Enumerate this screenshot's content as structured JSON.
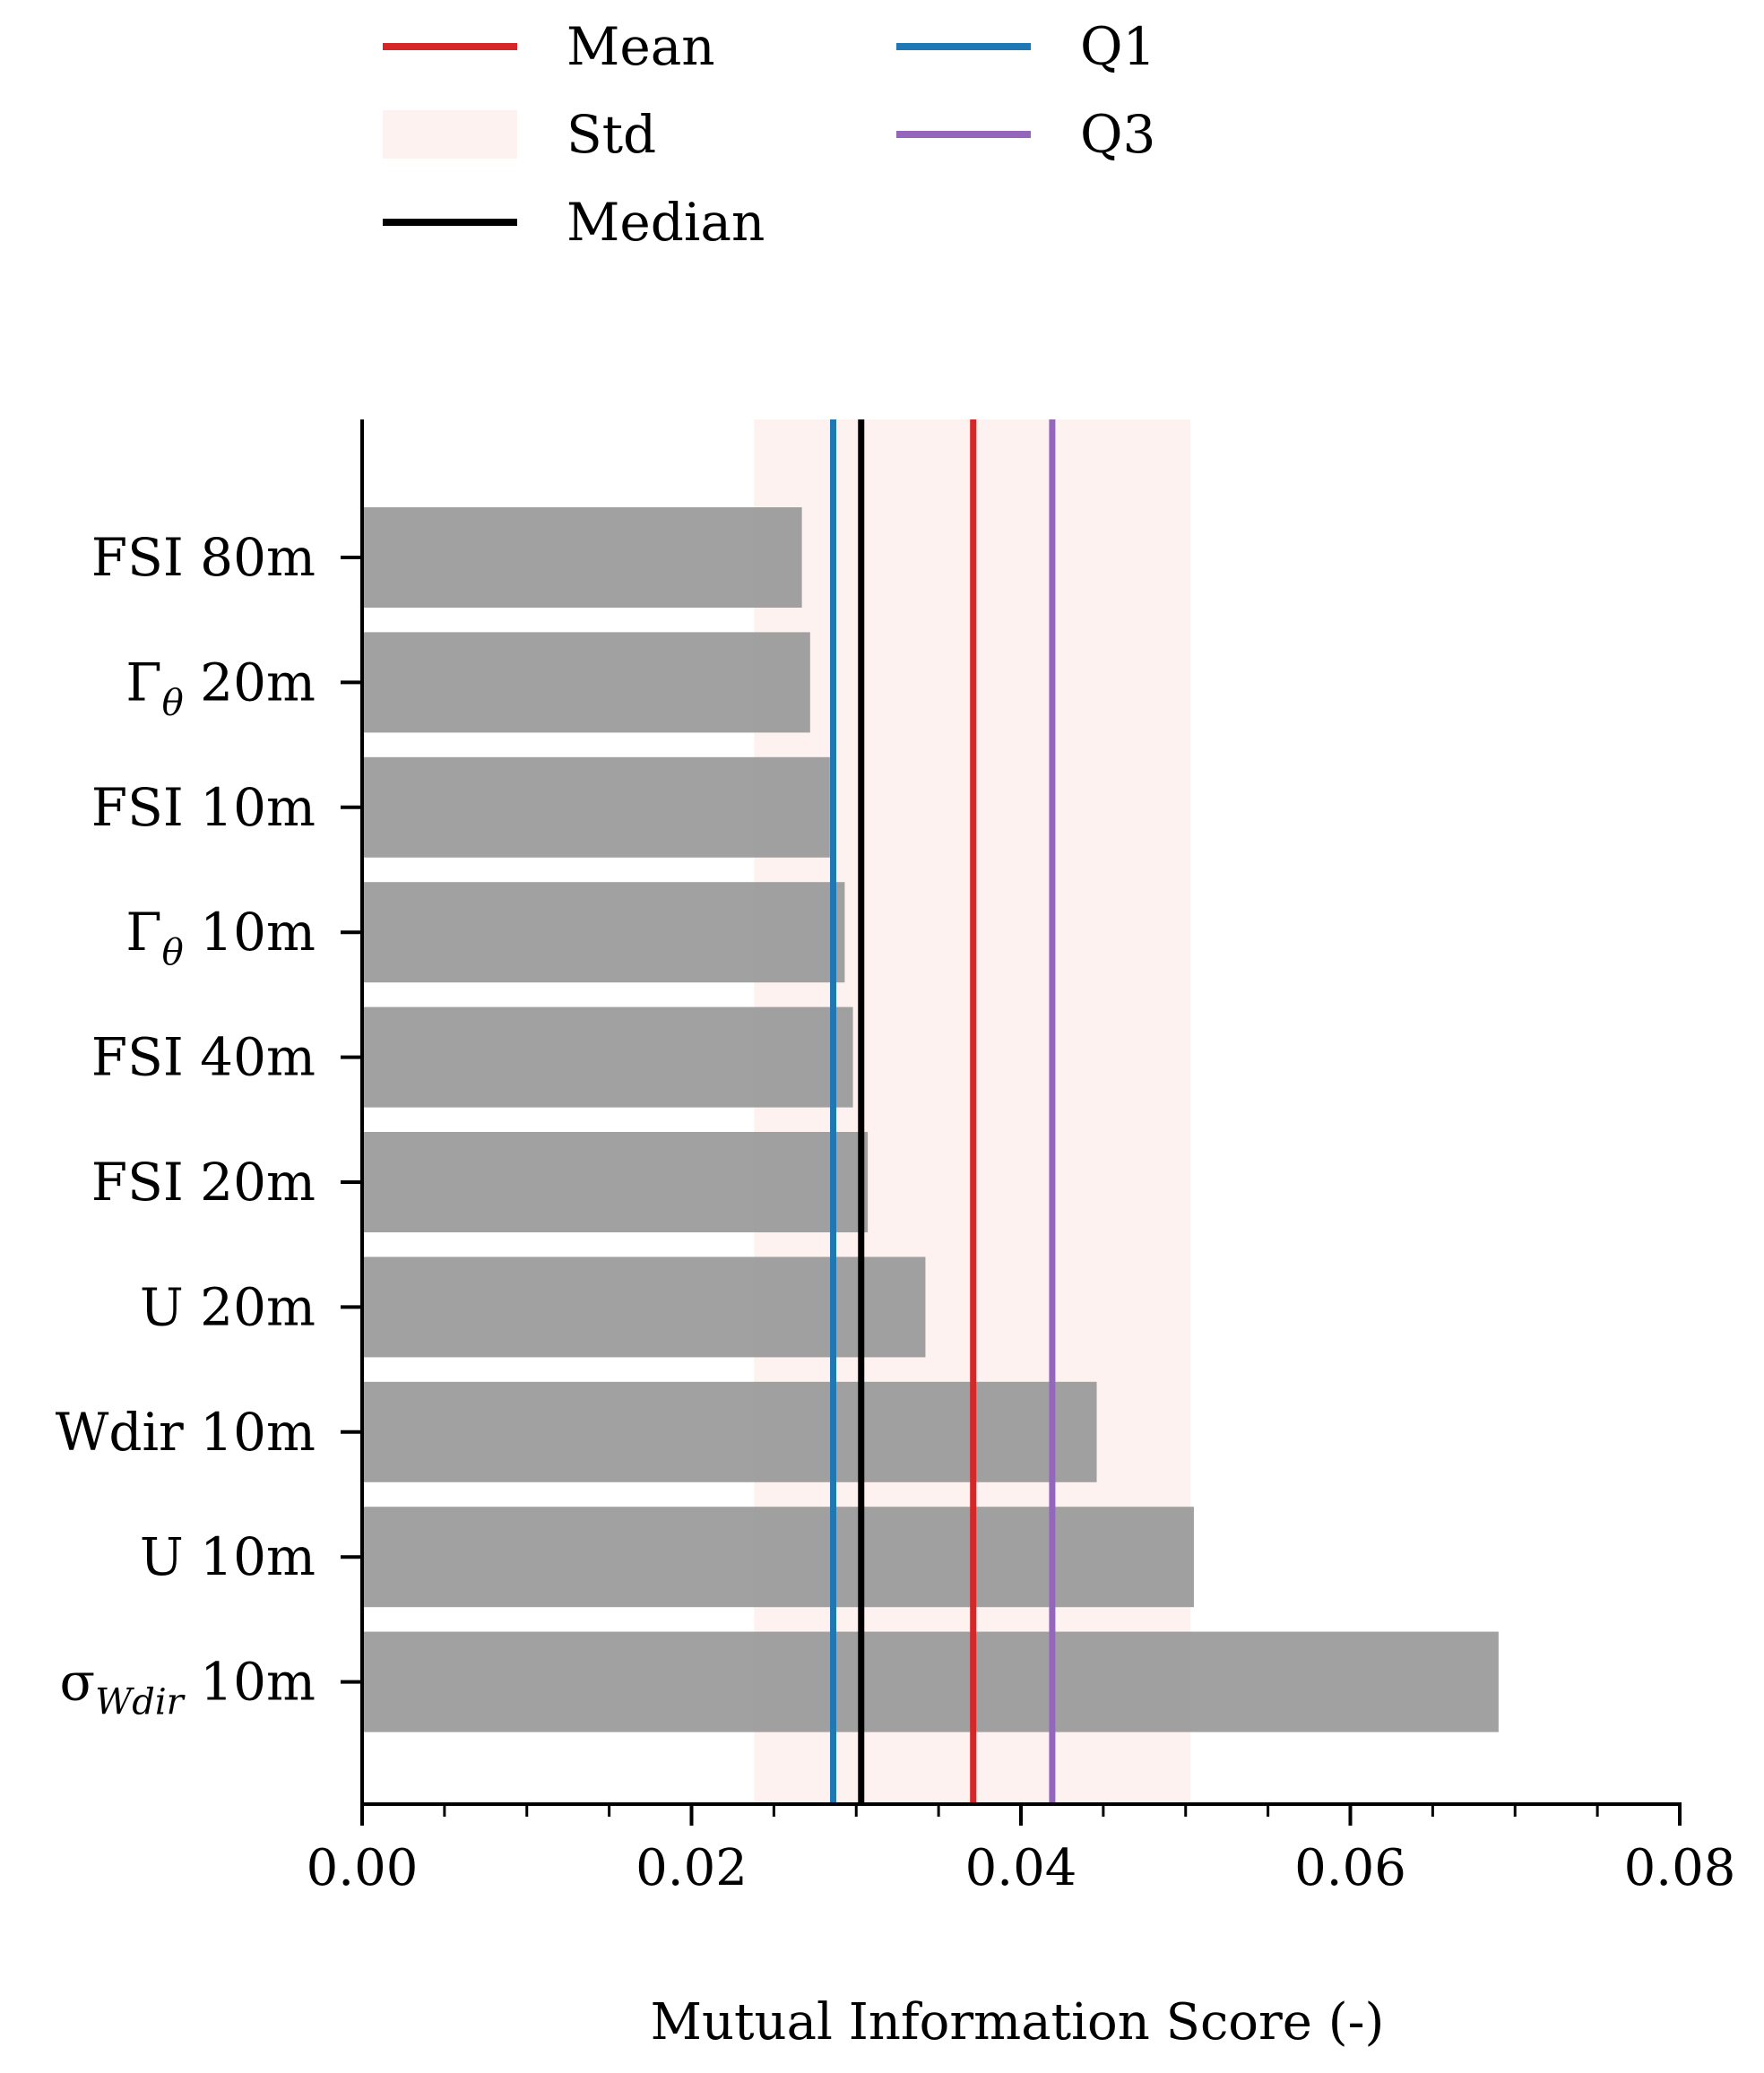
{
  "chart_data": {
    "type": "bar",
    "orientation": "horizontal",
    "categories": [
      "FSI 80m",
      "Γ_θ 20m",
      "FSI 10m",
      "Γ_θ 10m",
      "FSI 40m",
      "FSI 20m",
      "U 20m",
      "Wdir 10m",
      "U 10m",
      "σ_Wdir 10m"
    ],
    "category_labels": [
      {
        "main": "FSI",
        "sub": "",
        "suffix": "80m"
      },
      {
        "main": "Γ",
        "sub": "θ",
        "suffix": "20m"
      },
      {
        "main": "FSI",
        "sub": "",
        "suffix": "10m"
      },
      {
        "main": "Γ",
        "sub": "θ",
        "suffix": "10m"
      },
      {
        "main": "FSI",
        "sub": "",
        "suffix": "40m"
      },
      {
        "main": "FSI",
        "sub": "",
        "suffix": "20m"
      },
      {
        "main": "U",
        "sub": "",
        "suffix": "20m"
      },
      {
        "main": "Wdir",
        "sub": "",
        "suffix": "10m"
      },
      {
        "main": "U",
        "sub": "",
        "suffix": "10m"
      },
      {
        "main": "σ",
        "sub": "Wdir",
        "suffix": "10m"
      }
    ],
    "values": [
      0.0267,
      0.0272,
      0.0284,
      0.0293,
      0.0298,
      0.0307,
      0.0342,
      0.0446,
      0.0505,
      0.069
    ],
    "xlabel": "Mutual Information Score (-)",
    "ylabel": "",
    "xlim": [
      0,
      0.08
    ],
    "xticks": [
      0,
      0.02,
      0.04,
      0.06,
      0.08
    ],
    "xtick_labels": [
      "0.00",
      "0.02",
      "0.04",
      "0.06",
      "0.08"
    ],
    "minor_tick_step": 0.005,
    "grid": false,
    "bar_color": "#999999",
    "stats": {
      "mean": 0.0371,
      "std_range": [
        0.0238,
        0.0503
      ],
      "median": 0.0303,
      "q1": 0.0286,
      "q3": 0.0419
    },
    "legend": {
      "placement": "top",
      "items": [
        {
          "label": "Mean",
          "color": "#d62728",
          "kind": "line"
        },
        {
          "label": "Std",
          "color": "#fdf2f0",
          "kind": "patch"
        },
        {
          "label": "Median",
          "color": "#000000",
          "kind": "line"
        },
        {
          "label": "Q1",
          "color": "#1f77b4",
          "kind": "line"
        },
        {
          "label": "Q3",
          "color": "#9467bd",
          "kind": "line"
        }
      ]
    }
  }
}
